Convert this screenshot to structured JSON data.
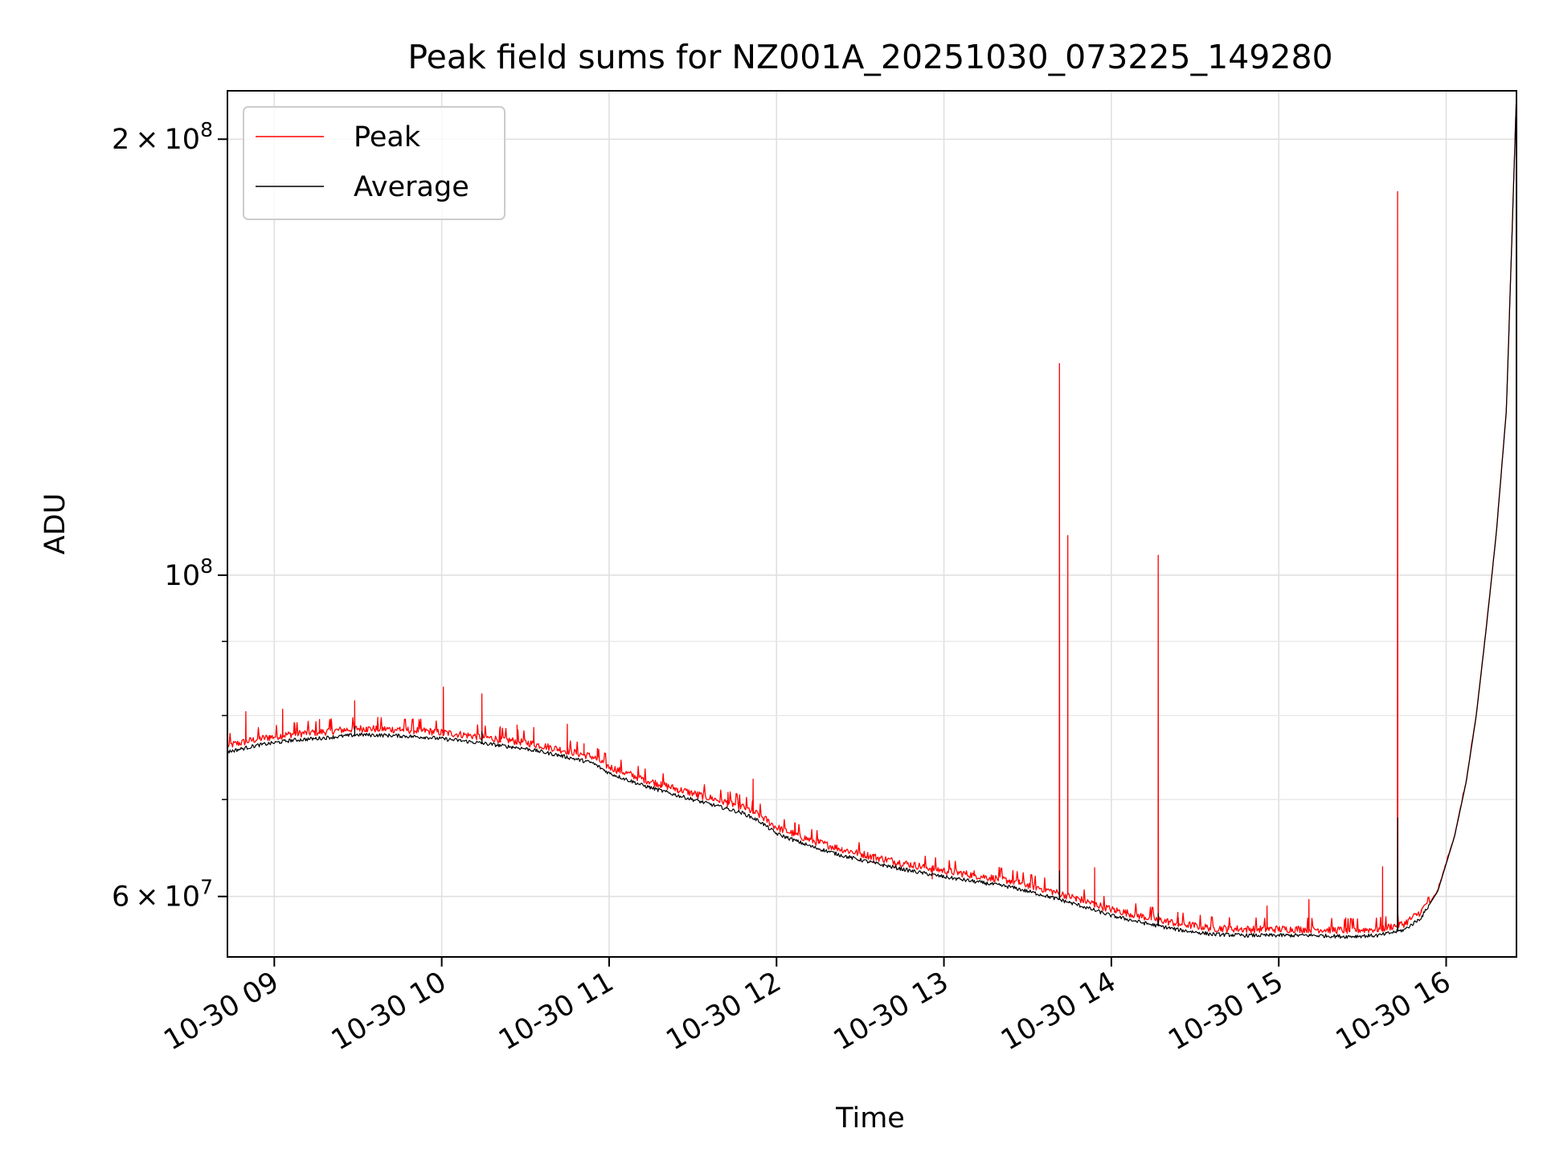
{
  "chart_data": {
    "type": "line",
    "title": "Peak field sums for NZ001A_20251030_073225_149280",
    "xlabel": "Time",
    "ylabel": "ADU",
    "yscale": "log",
    "xlim_hours": [
      8.72,
      16.42
    ],
    "ylim": [
      54500000,
      216000000
    ],
    "grid": true,
    "legend_position": "top-left",
    "x_ticks": [
      {
        "value": 9,
        "label": "10-30 09"
      },
      {
        "value": 10,
        "label": "10-30 10"
      },
      {
        "value": 11,
        "label": "10-30 11"
      },
      {
        "value": 12,
        "label": "10-30 12"
      },
      {
        "value": 13,
        "label": "10-30 13"
      },
      {
        "value": 14,
        "label": "10-30 14"
      },
      {
        "value": 15,
        "label": "10-30 15"
      },
      {
        "value": 16,
        "label": "10-30 16"
      }
    ],
    "y_major_ticks": [
      {
        "value": 60000000,
        "mantissa": "6",
        "exponent": "7"
      },
      {
        "value": 100000000,
        "mantissa": "",
        "exponent": "8"
      },
      {
        "value": 200000000,
        "mantissa": "2",
        "exponent": "8"
      }
    ],
    "y_minor_ticks": [
      70000000,
      80000000,
      90000000
    ],
    "series": [
      {
        "name": "Peak",
        "color": "#ff0000",
        "base_from": "Average",
        "noise_fraction": 0.012,
        "spikes": [
          {
            "x": 8.83,
            "y": 80500000
          },
          {
            "x": 8.97,
            "y": 77500000
          },
          {
            "x": 9.05,
            "y": 80800000
          },
          {
            "x": 9.12,
            "y": 77800000
          },
          {
            "x": 9.27,
            "y": 79500000
          },
          {
            "x": 9.34,
            "y": 79600000
          },
          {
            "x": 9.42,
            "y": 78300000
          },
          {
            "x": 9.48,
            "y": 81900000
          },
          {
            "x": 9.55,
            "y": 78200000
          },
          {
            "x": 9.62,
            "y": 79000000
          },
          {
            "x": 9.75,
            "y": 78400000
          },
          {
            "x": 9.88,
            "y": 78100000
          },
          {
            "x": 10.01,
            "y": 83700000
          },
          {
            "x": 10.24,
            "y": 82800000
          },
          {
            "x": 10.35,
            "y": 78600000
          },
          {
            "x": 10.45,
            "y": 78800000
          },
          {
            "x": 10.55,
            "y": 78500000
          },
          {
            "x": 10.75,
            "y": 78900000
          },
          {
            "x": 10.85,
            "y": 76500000
          },
          {
            "x": 10.93,
            "y": 75900000
          },
          {
            "x": 11.31,
            "y": 72000000
          },
          {
            "x": 11.41,
            "y": 70800000
          },
          {
            "x": 11.53,
            "y": 70300000
          },
          {
            "x": 11.71,
            "y": 70800000
          },
          {
            "x": 11.86,
            "y": 72300000
          },
          {
            "x": 12.11,
            "y": 66200000
          },
          {
            "x": 12.25,
            "y": 65300000
          },
          {
            "x": 12.39,
            "y": 64600000
          },
          {
            "x": 12.58,
            "y": 63300000
          },
          {
            "x": 12.71,
            "y": 62800000
          },
          {
            "x": 12.93,
            "y": 61700000
          },
          {
            "x": 13.18,
            "y": 62500000
          },
          {
            "x": 13.45,
            "y": 61600000
          },
          {
            "x": 13.69,
            "y": 140000000
          },
          {
            "x": 13.74,
            "y": 106500000
          },
          {
            "x": 13.79,
            "y": 60000000
          },
          {
            "x": 13.9,
            "y": 62800000
          },
          {
            "x": 14.02,
            "y": 58500000
          },
          {
            "x": 14.28,
            "y": 103200000
          },
          {
            "x": 14.4,
            "y": 58000000
          },
          {
            "x": 14.7,
            "y": 57200000
          },
          {
            "x": 14.93,
            "y": 59100000
          },
          {
            "x": 15.18,
            "y": 59700000
          },
          {
            "x": 15.4,
            "y": 58000000
          },
          {
            "x": 15.62,
            "y": 62900000
          },
          {
            "x": 15.71,
            "y": 184000000
          },
          {
            "x": 15.85,
            "y": 58500000
          }
        ]
      },
      {
        "name": "Average",
        "color": "#000000",
        "points": [
          [
            8.72,
            75500000
          ],
          [
            8.9,
            76300000
          ],
          [
            9.1,
            76900000
          ],
          [
            9.3,
            77200000
          ],
          [
            9.5,
            77600000
          ],
          [
            9.7,
            77500000
          ],
          [
            9.9,
            77300000
          ],
          [
            10.1,
            76900000
          ],
          [
            10.3,
            76400000
          ],
          [
            10.5,
            75900000
          ],
          [
            10.7,
            75100000
          ],
          [
            10.9,
            74200000
          ],
          [
            11.0,
            73000000
          ],
          [
            11.2,
            71600000
          ],
          [
            11.4,
            70500000
          ],
          [
            11.6,
            69500000
          ],
          [
            11.8,
            68500000
          ],
          [
            11.9,
            67600000
          ],
          [
            12.0,
            66300000
          ],
          [
            12.2,
            65000000
          ],
          [
            12.4,
            64000000
          ],
          [
            12.6,
            63200000
          ],
          [
            12.8,
            62500000
          ],
          [
            13.0,
            61900000
          ],
          [
            13.2,
            61400000
          ],
          [
            13.4,
            60900000
          ],
          [
            13.6,
            60100000
          ],
          [
            13.8,
            59200000
          ],
          [
            14.0,
            58200000
          ],
          [
            14.2,
            57500000
          ],
          [
            14.4,
            56900000
          ],
          [
            14.6,
            56500000
          ],
          [
            14.8,
            56400000
          ],
          [
            15.0,
            56400000
          ],
          [
            15.2,
            56400000
          ],
          [
            15.4,
            56300000
          ],
          [
            15.6,
            56400000
          ],
          [
            15.75,
            56900000
          ],
          [
            15.85,
            58000000
          ],
          [
            15.95,
            60500000
          ],
          [
            16.05,
            66000000
          ],
          [
            16.12,
            72000000
          ],
          [
            16.18,
            80000000
          ],
          [
            16.24,
            92000000
          ],
          [
            16.3,
            107000000
          ],
          [
            16.36,
            130000000
          ],
          [
            16.42,
            215000000
          ]
        ],
        "spikes": [
          {
            "x": 9.48,
            "y": 78600000
          },
          {
            "x": 10.24,
            "y": 78000000
          },
          {
            "x": 13.69,
            "y": 62500000
          },
          {
            "x": 14.28,
            "y": 58400000
          },
          {
            "x": 15.71,
            "y": 68000000
          }
        ]
      }
    ]
  }
}
